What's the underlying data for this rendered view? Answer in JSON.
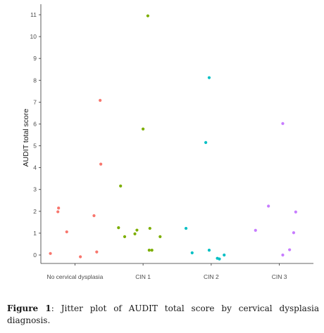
{
  "chart_data": {
    "type": "scatter",
    "categories": [
      "No cervical dysplasia",
      "CIN 1",
      "CIN 2",
      "CIN 3"
    ],
    "ylabel": "AUDIT total score",
    "xlabel": "",
    "ylim": [
      -0.25,
      11.2
    ],
    "yticks": [
      0,
      1,
      2,
      3,
      4,
      5,
      6,
      7,
      8,
      9,
      10,
      11
    ],
    "grid": false,
    "legend": "none",
    "series": [
      {
        "category": "No cervical dysplasia",
        "color": "#F8766D",
        "points": [
          {
            "offset": -0.36,
            "value": 0.07
          },
          {
            "offset": -0.24,
            "value": 2.15
          },
          {
            "offset": -0.25,
            "value": 1.98
          },
          {
            "offset": -0.12,
            "value": 1.06
          },
          {
            "offset": 0.08,
            "value": -0.08
          },
          {
            "offset": 0.28,
            "value": 1.8
          },
          {
            "offset": 0.32,
            "value": 0.14
          },
          {
            "offset": 0.38,
            "value": 4.16
          },
          {
            "offset": 0.37,
            "value": 7.08
          }
        ]
      },
      {
        "category": "CIN 1",
        "color": "#7CAE00",
        "points": [
          {
            "offset": -0.36,
            "value": 1.25
          },
          {
            "offset": -0.33,
            "value": 3.16
          },
          {
            "offset": -0.27,
            "value": 0.84
          },
          {
            "offset": -0.12,
            "value": 0.97
          },
          {
            "offset": -0.09,
            "value": 1.14
          },
          {
            "offset": 0.0,
            "value": 5.77
          },
          {
            "offset": 0.07,
            "value": 10.95
          },
          {
            "offset": 0.1,
            "value": 1.22
          },
          {
            "offset": 0.09,
            "value": 0.22
          },
          {
            "offset": 0.13,
            "value": 0.22
          },
          {
            "offset": 0.25,
            "value": 0.84
          }
        ]
      },
      {
        "category": "CIN 2",
        "color": "#00BFC4",
        "points": [
          {
            "offset": -0.37,
            "value": 1.22
          },
          {
            "offset": -0.28,
            "value": 0.1
          },
          {
            "offset": -0.08,
            "value": 5.15
          },
          {
            "offset": -0.03,
            "value": 8.12
          },
          {
            "offset": -0.03,
            "value": 0.22
          },
          {
            "offset": 0.09,
            "value": -0.15
          },
          {
            "offset": 0.12,
            "value": -0.18
          },
          {
            "offset": 0.19,
            "value": 0.0
          }
        ]
      },
      {
        "category": "CIN 3",
        "color": "#C77CFF",
        "points": [
          {
            "offset": -0.35,
            "value": 1.13
          },
          {
            "offset": -0.16,
            "value": 2.24
          },
          {
            "offset": 0.05,
            "value": 6.02
          },
          {
            "offset": 0.05,
            "value": 0.0
          },
          {
            "offset": 0.15,
            "value": 0.24
          },
          {
            "offset": 0.21,
            "value": 1.02
          },
          {
            "offset": 0.24,
            "value": 1.97
          }
        ]
      }
    ]
  },
  "caption": {
    "label": "Figure 1",
    "text": ": Jitter plot of AUDIT total score by cervical dysplasia diagnosis."
  }
}
